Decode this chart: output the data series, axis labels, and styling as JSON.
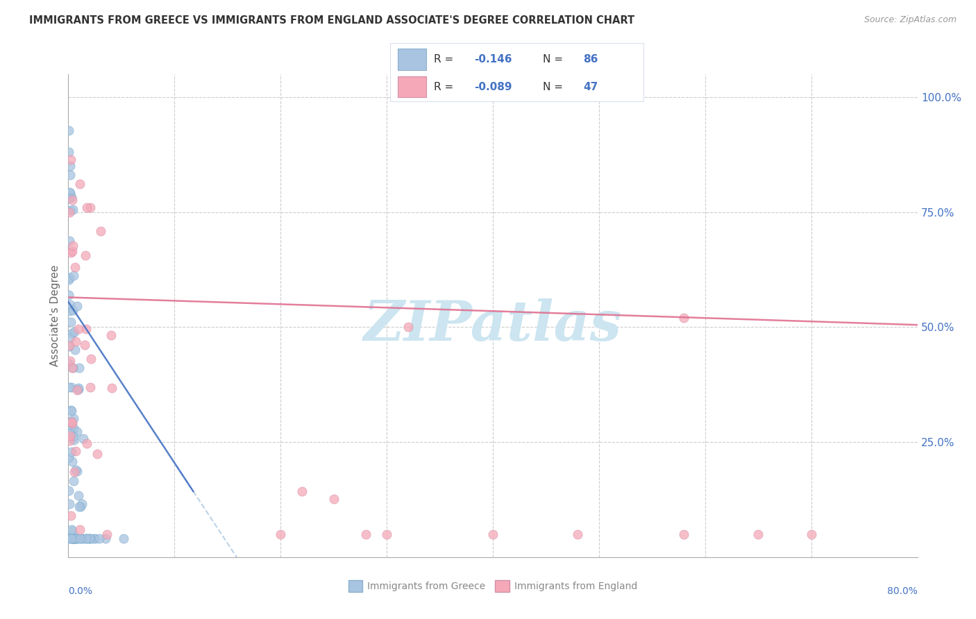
{
  "title": "IMMIGRANTS FROM GREECE VS IMMIGRANTS FROM ENGLAND ASSOCIATE'S DEGREE CORRELATION CHART",
  "source": "Source: ZipAtlas.com",
  "ylabel": "Associate's Degree",
  "color_greece": "#a8c4e0",
  "color_england": "#f4a8b8",
  "color_blue_text": "#4472c4",
  "color_dark": "#333333",
  "watermark": "ZIPatlas",
  "watermark_color": "#cce5f0",
  "legend_r1_val": "-0.146",
  "legend_n1_val": "86",
  "legend_r2_val": "-0.089",
  "legend_n2_val": "47",
  "greece_trend_color": "#4472c4",
  "england_trend_color": "#e07090",
  "xlim": [
    0.0,
    0.8
  ],
  "ylim": [
    0.0,
    1.05
  ],
  "right_ytick_vals": [
    0.25,
    0.5,
    0.75,
    1.0
  ],
  "right_ytick_labels": [
    "25.0%",
    "50.0%",
    "75.0%",
    "100.0%"
  ]
}
